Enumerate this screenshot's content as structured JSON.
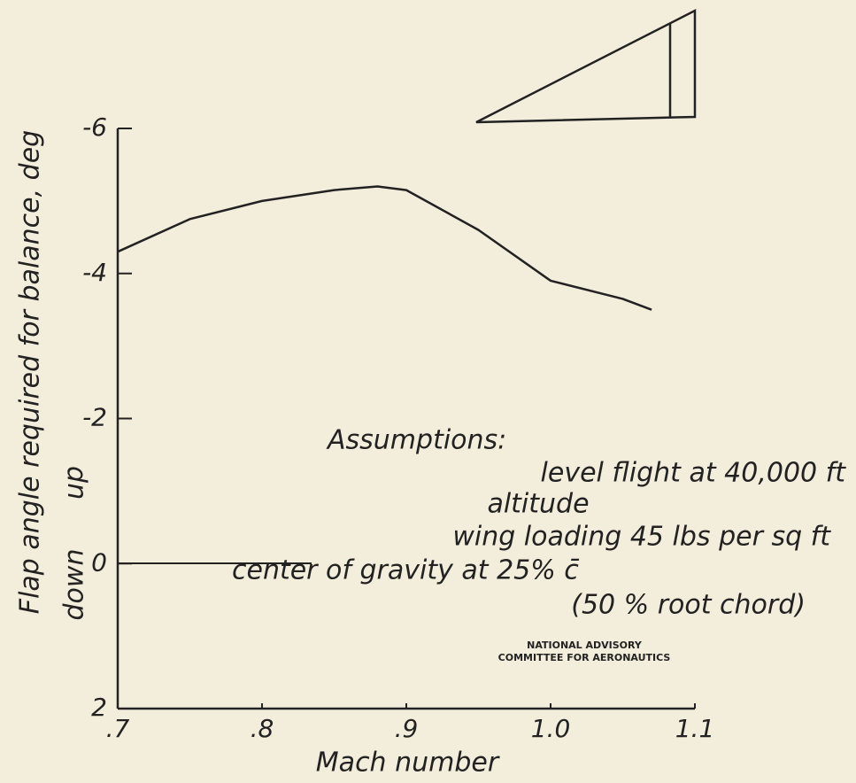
{
  "chart_data": {
    "type": "line",
    "x_label": "Mach number",
    "y_label": "Flap angle required for balance, deg",
    "y_direction_labels": [
      "down",
      "up"
    ],
    "x": [
      0.7,
      0.75,
      0.8,
      0.85,
      0.88,
      0.9,
      0.95,
      1.0,
      1.05,
      1.07
    ],
    "values": [
      -4.3,
      -4.75,
      -5.0,
      -5.15,
      -5.2,
      -5.15,
      -4.6,
      -3.9,
      -3.65,
      -3.5
    ],
    "color": "#222222",
    "xlim": [
      0.7,
      1.1
    ],
    "xticks": [
      {
        "value": 0.7,
        "label": ".7"
      },
      {
        "value": 0.8,
        "label": ".8"
      },
      {
        "value": 0.9,
        "label": ".9"
      },
      {
        "value": 1.0,
        "label": "1.0"
      },
      1.1
    ],
    "ylim": [
      2,
      -6
    ],
    "yticks": [
      -6,
      -4,
      -2,
      0,
      2
    ],
    "annotations": [
      "Assumptions:",
      "level flight at 40,000 ft",
      "altitude",
      "wing loading 45 lbs per sq ft",
      "center of gravity at 25% c̄",
      "(50 % root chord)"
    ],
    "credit": [
      "NATIONAL ADVISORY",
      "COMMITTEE FOR AERONAUTICS"
    ]
  }
}
